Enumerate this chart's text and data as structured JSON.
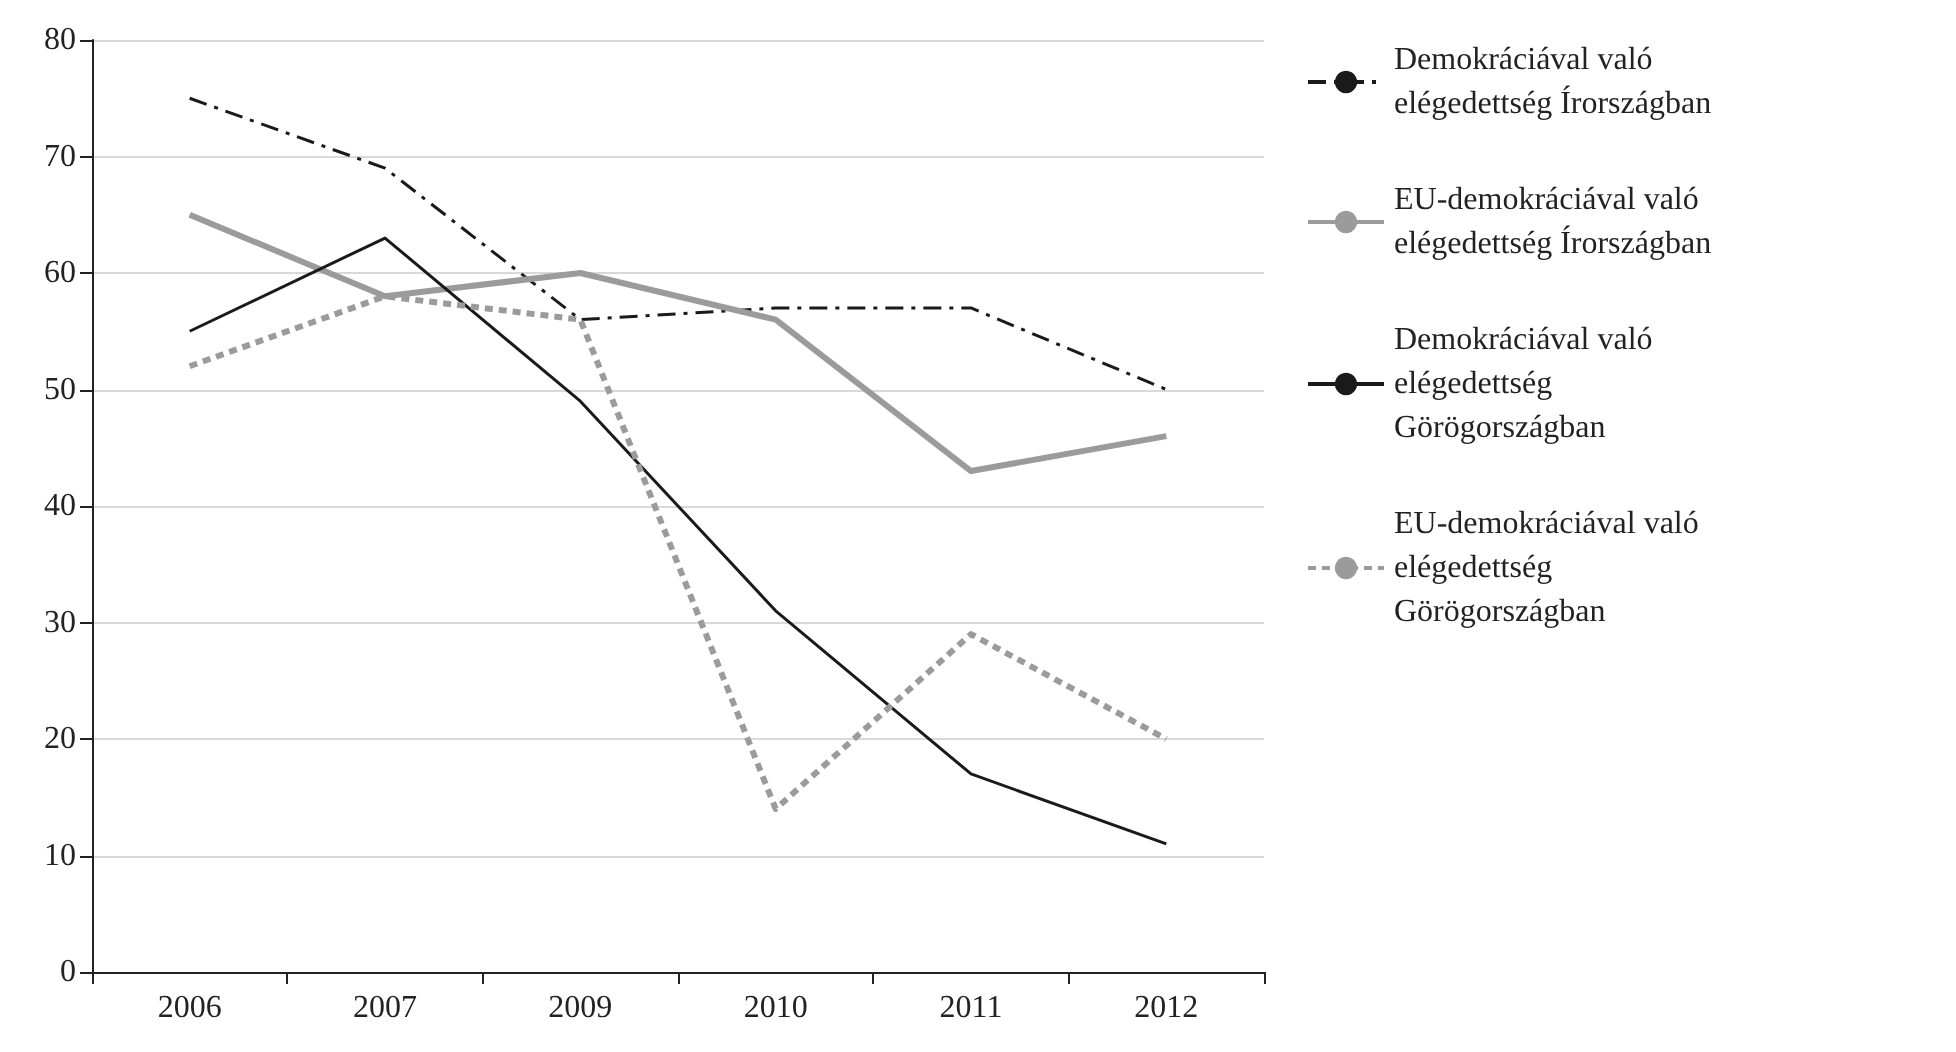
{
  "chart_data": {
    "type": "line",
    "categories": [
      "2006",
      "2007",
      "2009",
      "2010",
      "2011",
      "2012"
    ],
    "series": [
      {
        "name": "Demokráciával való elégedettség Írországban",
        "color": "#1a1a1a",
        "line_style": "dashed",
        "values": [
          75,
          69,
          56,
          57,
          57,
          50
        ]
      },
      {
        "name": "EU-demokráciával való elégedettség Írországban",
        "color": "#9b9b9b",
        "line_style": "solid",
        "values": [
          65,
          58,
          60,
          56,
          43,
          46
        ]
      },
      {
        "name": "Demokráciával való elégedettség Görögországban",
        "color": "#1a1a1a",
        "line_style": "solid",
        "values": [
          55,
          63,
          49,
          31,
          17,
          11
        ]
      },
      {
        "name": "EU-demokráciával való elégedettség Görögországban",
        "color": "#9b9b9b",
        "line_style": "dotted",
        "values": [
          52,
          58,
          56,
          14,
          29,
          20
        ]
      }
    ],
    "ylim": [
      0,
      80
    ],
    "yticks": [
      0,
      10,
      20,
      30,
      40,
      50,
      60,
      70,
      80
    ],
    "grid": "y",
    "legend": "right",
    "marker": "none"
  }
}
